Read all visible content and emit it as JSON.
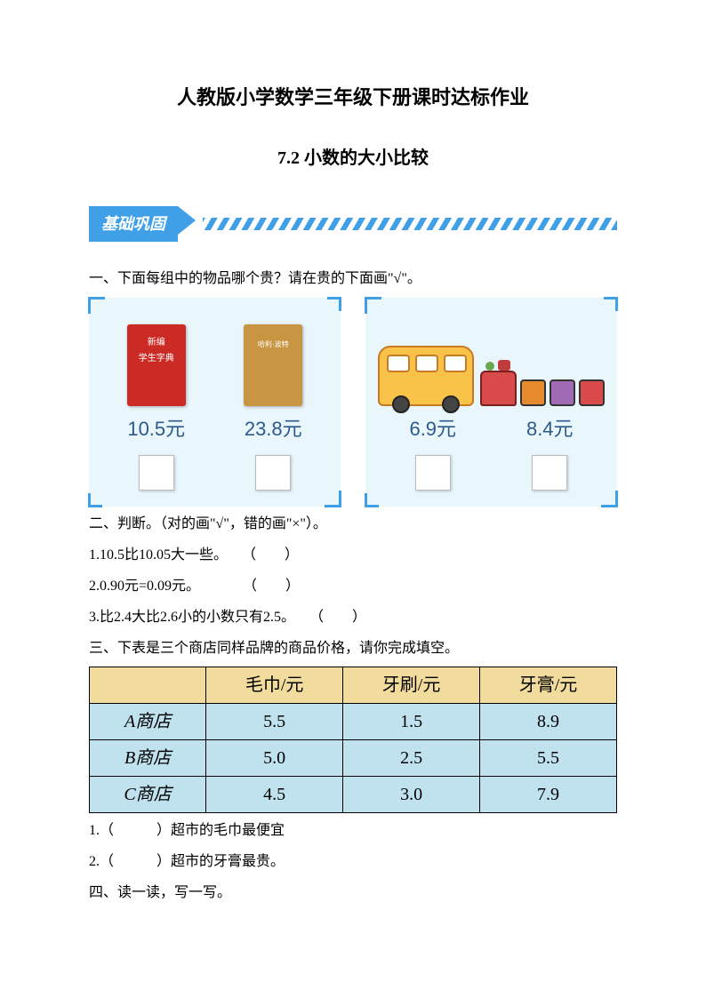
{
  "title": "人教版小学数学三年级下册课时达标作业",
  "subtitle": "7.2 小数的大小比较",
  "banner": "基础巩固",
  "q1": {
    "prompt": "一、下面每组中的物品哪个贵？请在贵的下面画\"√\"。",
    "cardA": {
      "book1_label1": "新编",
      "book1_label2": "学生字典",
      "book2_label": "哈利·波特",
      "price1": "10.5元",
      "price2": "23.8元"
    },
    "cardB": {
      "price1": "6.9元",
      "price2": "8.4元"
    }
  },
  "q2": {
    "prompt": "二、判断。（对的画\"√\"，错的画\"×\"）。",
    "items": [
      "1.10.5比10.05大一些。　　（　　）",
      "2.0.90元=0.09元。　　　　（　　）",
      "3.比2.4大比2.6小的小数只有2.5。　　（　　）"
    ]
  },
  "q3": {
    "prompt": "三、下表是三个商店同样品牌的商品价格，请你完成填空。",
    "table": {
      "headers": [
        "",
        "毛巾/元",
        "牙刷/元",
        "牙膏/元"
      ],
      "rows": [
        {
          "label": "A商店",
          "cells": [
            "5.5",
            "1.5",
            "8.9"
          ]
        },
        {
          "label": "B商店",
          "cells": [
            "5.0",
            "2.5",
            "5.5"
          ]
        },
        {
          "label": "C商店",
          "cells": [
            "4.5",
            "3.0",
            "7.9"
          ]
        }
      ],
      "header_bg": "#f2dc9d",
      "body_bg": "#bfe2ee"
    },
    "blanks": [
      "1.（　　　）超市的毛巾最便宜",
      "2.（　　　）超市的牙膏最贵。"
    ]
  },
  "q4": {
    "prompt": "四、读一读，写一写。"
  }
}
